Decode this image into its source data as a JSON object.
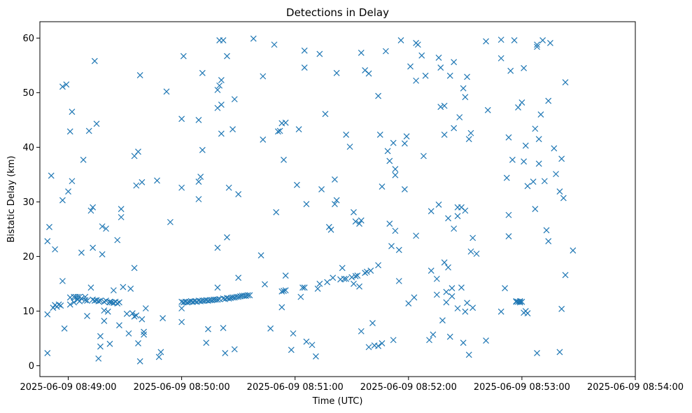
{
  "chart_data": {
    "type": "scatter",
    "title": "Detections in Delay",
    "xlabel": "Time (UTC)",
    "ylabel": "Bistatic Delay (km)",
    "marker": "x",
    "color": "#1f77b4",
    "grid": false,
    "xlim": [
      "2025-06-09 08:48:45",
      "2025-06-09 08:54:00"
    ],
    "ylim": [
      -2,
      63
    ],
    "x_ticks": [
      "2025-06-09 08:49:00",
      "2025-06-09 08:50:00",
      "2025-06-09 08:51:00",
      "2025-06-09 08:52:00",
      "2025-06-09 08:53:00",
      "2025-06-09 08:54:00"
    ],
    "y_ticks": [
      "0",
      "10",
      "20",
      "30",
      "40",
      "50",
      "60"
    ],
    "x_unit": "seconds after 2025-06-09 08:49:00",
    "points": [
      [
        -11,
        9.4
      ],
      [
        -11,
        22.8
      ],
      [
        -11,
        2.3
      ],
      [
        -10,
        25.4
      ],
      [
        -9,
        34.8
      ],
      [
        -8,
        10.6
      ],
      [
        -7,
        11.1
      ],
      [
        -7,
        21.3
      ],
      [
        -6,
        10.8
      ],
      [
        -5,
        11.2
      ],
      [
        -4,
        11.0
      ],
      [
        -3,
        30.3
      ],
      [
        -3,
        51.1
      ],
      [
        -3,
        15.5
      ],
      [
        -2,
        6.8
      ],
      [
        -1,
        51.5
      ],
      [
        0,
        31.9
      ],
      [
        1,
        42.9
      ],
      [
        1,
        12.5
      ],
      [
        1,
        11.2
      ],
      [
        2,
        46.5
      ],
      [
        2,
        33.8
      ],
      [
        3,
        11.6
      ],
      [
        3,
        12.6
      ],
      [
        4,
        12.6
      ],
      [
        5,
        12.1
      ],
      [
        5,
        12.6
      ],
      [
        6,
        11.8
      ],
      [
        6,
        12.6
      ],
      [
        7,
        20.7
      ],
      [
        7,
        12.3
      ],
      [
        8,
        37.7
      ],
      [
        9,
        12.6
      ],
      [
        9,
        12.0
      ],
      [
        10,
        9.1
      ],
      [
        10,
        11.9
      ],
      [
        11,
        43.0
      ],
      [
        12,
        14.3
      ],
      [
        12,
        28.4
      ],
      [
        13,
        29.0
      ],
      [
        13,
        12.1
      ],
      [
        13,
        21.6
      ],
      [
        14,
        11.9
      ],
      [
        14,
        55.8
      ],
      [
        15,
        44.3
      ],
      [
        15,
        12.0
      ],
      [
        16,
        1.3
      ],
      [
        16,
        11.8
      ],
      [
        17,
        3.5
      ],
      [
        17,
        5.4
      ],
      [
        17,
        11.9
      ],
      [
        18,
        20.4
      ],
      [
        18,
        25.5
      ],
      [
        19,
        8.2
      ],
      [
        19,
        10.1
      ],
      [
        19,
        11.7
      ],
      [
        20,
        25.1
      ],
      [
        20,
        11.9
      ],
      [
        21,
        9.9
      ],
      [
        22,
        11.6
      ],
      [
        22,
        4.0
      ],
      [
        22,
        11.7
      ],
      [
        23,
        11.6
      ],
      [
        24,
        13.8
      ],
      [
        24,
        11.5
      ],
      [
        25,
        11.7
      ],
      [
        26,
        23.0
      ],
      [
        26,
        11.4
      ],
      [
        27,
        7.4
      ],
      [
        27,
        11.6
      ],
      [
        28,
        28.7
      ],
      [
        28,
        27.2
      ],
      [
        29,
        14.4
      ],
      [
        31,
        9.5
      ],
      [
        32,
        5.9
      ],
      [
        33,
        14.1
      ],
      [
        34,
        9.6
      ],
      [
        35,
        9.0
      ],
      [
        35,
        38.4
      ],
      [
        35,
        17.9
      ],
      [
        36,
        9.2
      ],
      [
        36,
        33.0
      ],
      [
        37,
        4.1
      ],
      [
        37,
        39.2
      ],
      [
        38,
        53.2
      ],
      [
        38,
        0.8
      ],
      [
        39,
        33.6
      ],
      [
        39,
        8.5
      ],
      [
        40,
        6.2
      ],
      [
        40,
        5.7
      ],
      [
        41,
        10.5
      ],
      [
        47,
        33.9
      ],
      [
        48,
        1.6
      ],
      [
        49,
        2.5
      ],
      [
        50,
        8.7
      ],
      [
        52,
        50.2
      ],
      [
        54,
        26.3
      ],
      [
        60,
        11.7
      ],
      [
        60,
        8.0
      ],
      [
        60,
        10.5
      ],
      [
        60,
        32.6
      ],
      [
        60,
        45.2
      ],
      [
        61,
        56.7
      ],
      [
        61,
        11.6
      ],
      [
        62,
        11.7
      ],
      [
        63,
        11.6
      ],
      [
        64,
        11.7
      ],
      [
        65,
        11.8
      ],
      [
        66,
        11.7
      ],
      [
        67,
        11.8
      ],
      [
        68,
        11.7
      ],
      [
        69,
        45.0
      ],
      [
        69,
        30.5
      ],
      [
        69,
        33.7
      ],
      [
        69,
        11.9
      ],
      [
        70,
        34.6
      ],
      [
        70,
        11.8
      ],
      [
        71,
        39.5
      ],
      [
        71,
        53.6
      ],
      [
        71,
        11.9
      ],
      [
        72,
        11.9
      ],
      [
        73,
        12.0
      ],
      [
        73,
        4.2
      ],
      [
        74,
        6.7
      ],
      [
        74,
        11.9
      ],
      [
        75,
        12.0
      ],
      [
        76,
        12.0
      ],
      [
        77,
        12.1
      ],
      [
        78,
        12.1
      ],
      [
        79,
        50.5
      ],
      [
        79,
        47.2
      ],
      [
        79,
        12.1
      ],
      [
        79,
        21.6
      ],
      [
        79,
        14.3
      ],
      [
        80,
        59.6
      ],
      [
        80,
        51.3
      ],
      [
        80,
        12.2
      ],
      [
        81,
        42.5
      ],
      [
        81,
        52.3
      ],
      [
        81,
        47.8
      ],
      [
        82,
        59.6
      ],
      [
        82,
        12.3
      ],
      [
        82,
        6.9
      ],
      [
        83,
        12.2
      ],
      [
        83,
        2.3
      ],
      [
        84,
        12.4
      ],
      [
        84,
        23.5
      ],
      [
        84,
        56.7
      ],
      [
        85,
        12.3
      ],
      [
        85,
        32.6
      ],
      [
        86,
        12.4
      ],
      [
        87,
        43.3
      ],
      [
        87,
        12.5
      ],
      [
        88,
        12.5
      ],
      [
        88,
        48.8
      ],
      [
        88,
        3.0
      ],
      [
        89,
        12.6
      ],
      [
        90,
        12.6
      ],
      [
        90,
        31.4
      ],
      [
        90,
        16.1
      ],
      [
        91,
        12.7
      ],
      [
        92,
        12.8
      ],
      [
        93,
        12.8
      ],
      [
        94,
        12.8
      ],
      [
        95,
        12.9
      ],
      [
        96,
        12.9
      ],
      [
        98,
        59.9
      ],
      [
        102,
        20.2
      ],
      [
        103,
        41.4
      ],
      [
        103,
        53.0
      ],
      [
        104,
        14.9
      ],
      [
        107,
        6.8
      ],
      [
        109,
        58.8
      ],
      [
        110,
        28.1
      ],
      [
        111,
        42.9
      ],
      [
        112,
        43.0
      ],
      [
        113,
        44.4
      ],
      [
        113,
        10.7
      ],
      [
        113,
        13.6
      ],
      [
        114,
        37.7
      ],
      [
        114,
        13.7
      ],
      [
        115,
        13.8
      ],
      [
        115,
        16.5
      ],
      [
        115,
        44.5
      ],
      [
        118,
        2.9
      ],
      [
        119,
        5.9
      ],
      [
        121,
        33.1
      ],
      [
        122,
        43.3
      ],
      [
        123,
        12.6
      ],
      [
        124,
        14.3
      ],
      [
        125,
        54.6
      ],
      [
        125,
        57.7
      ],
      [
        125,
        14.3
      ],
      [
        126,
        4.4
      ],
      [
        126,
        29.6
      ],
      [
        129,
        3.8
      ],
      [
        131,
        1.7
      ],
      [
        132,
        14.1
      ],
      [
        133,
        57.1
      ],
      [
        133,
        15.0
      ],
      [
        134,
        32.3
      ],
      [
        136,
        46.1
      ],
      [
        137,
        15.3
      ],
      [
        138,
        25.4
      ],
      [
        139,
        24.9
      ],
      [
        140,
        16.1
      ],
      [
        141,
        29.6
      ],
      [
        141,
        34.1
      ],
      [
        142,
        53.6
      ],
      [
        142,
        30.3
      ],
      [
        144,
        15.8
      ],
      [
        145,
        17.9
      ],
      [
        146,
        15.9
      ],
      [
        147,
        42.3
      ],
      [
        147,
        15.9
      ],
      [
        149,
        40.1
      ],
      [
        150,
        16.2
      ],
      [
        151,
        28.1
      ],
      [
        151,
        15.0
      ],
      [
        152,
        26.4
      ],
      [
        152,
        16.4
      ],
      [
        153,
        16.5
      ],
      [
        154,
        14.5
      ],
      [
        154,
        26.0
      ],
      [
        155,
        57.3
      ],
      [
        155,
        26.6
      ],
      [
        155,
        6.3
      ],
      [
        157,
        54.1
      ],
      [
        157,
        17.0
      ],
      [
        158,
        17.2
      ],
      [
        159,
        53.5
      ],
      [
        159,
        3.4
      ],
      [
        160,
        17.4
      ],
      [
        161,
        7.8
      ],
      [
        162,
        3.7
      ],
      [
        164,
        3.6
      ],
      [
        164,
        18.4
      ],
      [
        164,
        49.4
      ],
      [
        165,
        42.3
      ],
      [
        166,
        32.8
      ],
      [
        166,
        4.1
      ],
      [
        168,
        57.6
      ],
      [
        169,
        39.3
      ],
      [
        170,
        26.0
      ],
      [
        170,
        37.5
      ],
      [
        171,
        21.9
      ],
      [
        172,
        40.8
      ],
      [
        172,
        4.7
      ],
      [
        173,
        24.7
      ],
      [
        173,
        34.9
      ],
      [
        173,
        36.0
      ],
      [
        175,
        21.2
      ],
      [
        175,
        15.5
      ],
      [
        176,
        59.6
      ],
      [
        178,
        40.7
      ],
      [
        178,
        32.3
      ],
      [
        179,
        42.0
      ],
      [
        180,
        11.4
      ],
      [
        181,
        54.8
      ],
      [
        183,
        12.5
      ],
      [
        184,
        59.1
      ],
      [
        184,
        23.8
      ],
      [
        184,
        52.2
      ],
      [
        185,
        58.8
      ],
      [
        187,
        56.8
      ],
      [
        188,
        38.4
      ],
      [
        189,
        53.1
      ],
      [
        191,
        4.7
      ],
      [
        192,
        28.3
      ],
      [
        192,
        17.4
      ],
      [
        193,
        5.7
      ],
      [
        195,
        15.9
      ],
      [
        195,
        13.0
      ],
      [
        196,
        29.5
      ],
      [
        196,
        56.4
      ],
      [
        197,
        54.6
      ],
      [
        197,
        47.4
      ],
      [
        198,
        8.3
      ],
      [
        199,
        42.3
      ],
      [
        199,
        47.6
      ],
      [
        199,
        18.9
      ],
      [
        200,
        11.6
      ],
      [
        200,
        13.5
      ],
      [
        201,
        18.0
      ],
      [
        201,
        27.0
      ],
      [
        202,
        5.3
      ],
      [
        202,
        53.1
      ],
      [
        203,
        14.2
      ],
      [
        203,
        12.7
      ],
      [
        204,
        25.1
      ],
      [
        204,
        43.5
      ],
      [
        204,
        55.6
      ],
      [
        206,
        29.0
      ],
      [
        206,
        27.4
      ],
      [
        206,
        10.5
      ],
      [
        207,
        45.5
      ],
      [
        208,
        14.3
      ],
      [
        208,
        29.0
      ],
      [
        209,
        4.2
      ],
      [
        209,
        50.8
      ],
      [
        210,
        28.4
      ],
      [
        210,
        49.2
      ],
      [
        210,
        9.9
      ],
      [
        211,
        11.5
      ],
      [
        211,
        52.9
      ],
      [
        212,
        2.0
      ],
      [
        212,
        41.5
      ],
      [
        213,
        42.6
      ],
      [
        213,
        20.9
      ],
      [
        214,
        23.4
      ],
      [
        214,
        10.6
      ],
      [
        216,
        20.5
      ],
      [
        221,
        59.4
      ],
      [
        221,
        4.6
      ],
      [
        222,
        46.8
      ],
      [
        229,
        59.7
      ],
      [
        229,
        56.3
      ],
      [
        229,
        9.9
      ],
      [
        231,
        14.2
      ],
      [
        232,
        34.4
      ],
      [
        233,
        27.6
      ],
      [
        233,
        23.7
      ],
      [
        233,
        41.8
      ],
      [
        234,
        54.0
      ],
      [
        235,
        37.7
      ],
      [
        236,
        59.6
      ],
      [
        237,
        11.8
      ],
      [
        237,
        11.7
      ],
      [
        238,
        47.3
      ],
      [
        238,
        11.7
      ],
      [
        239,
        11.8
      ],
      [
        239,
        11.6
      ],
      [
        240,
        11.7
      ],
      [
        240,
        48.2
      ],
      [
        241,
        54.5
      ],
      [
        241,
        37.4
      ],
      [
        241,
        9.7
      ],
      [
        242,
        40.3
      ],
      [
        242,
        10.0
      ],
      [
        243,
        32.9
      ],
      [
        243,
        9.6
      ],
      [
        246,
        33.7
      ],
      [
        247,
        28.7
      ],
      [
        247,
        43.4
      ],
      [
        248,
        58.4
      ],
      [
        248,
        58.8
      ],
      [
        248,
        2.3
      ],
      [
        249,
        41.5
      ],
      [
        249,
        37.0
      ],
      [
        250,
        46.0
      ],
      [
        251,
        59.6
      ],
      [
        252,
        33.8
      ],
      [
        253,
        24.8
      ],
      [
        254,
        22.8
      ],
      [
        254,
        48.5
      ],
      [
        255,
        59.1
      ],
      [
        257,
        39.8
      ],
      [
        258,
        35.1
      ],
      [
        260,
        31.9
      ],
      [
        260,
        2.5
      ],
      [
        261,
        37.9
      ],
      [
        261,
        10.4
      ],
      [
        262,
        30.7
      ],
      [
        263,
        51.9
      ],
      [
        263,
        16.6
      ],
      [
        267,
        21.1
      ]
    ]
  }
}
